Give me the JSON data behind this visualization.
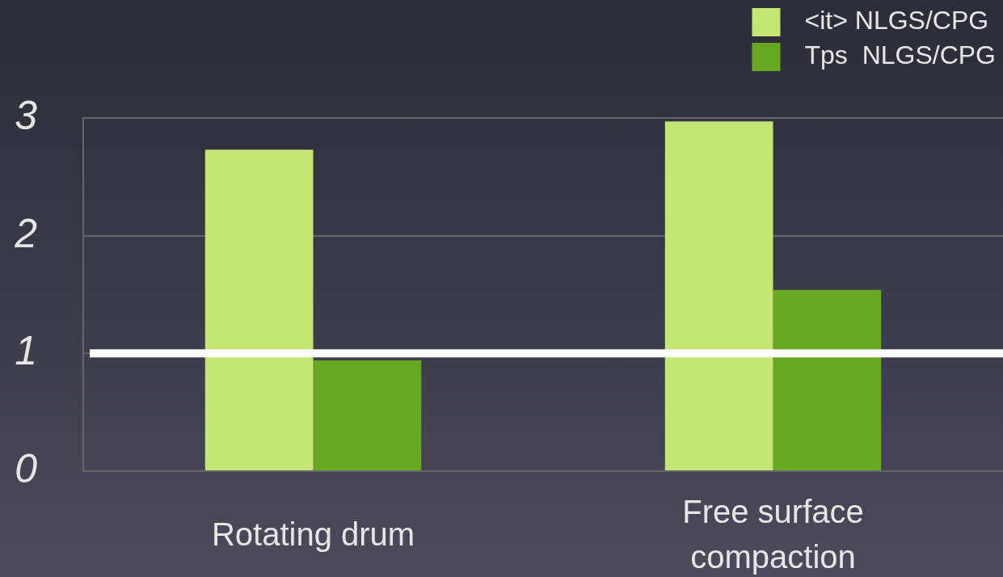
{
  "chart_data": {
    "type": "bar",
    "categories": [
      "Rotating drum",
      "Free surface compaction"
    ],
    "series": [
      {
        "name": "<it> NLGS/CPG",
        "color": "#c5e675",
        "values": [
          2.73,
          2.97
        ]
      },
      {
        "name": "Tps  NLGS/CPG",
        "color": "#6aa723",
        "values": [
          0.94,
          1.54
        ]
      }
    ],
    "ylim": [
      0,
      3
    ],
    "yticks": [
      0,
      1,
      2,
      3
    ],
    "grid": "y",
    "legend": "top right",
    "ref_lines": [
      {
        "axis": "y",
        "value": 1,
        "color": "#ffffff"
      }
    ]
  }
}
